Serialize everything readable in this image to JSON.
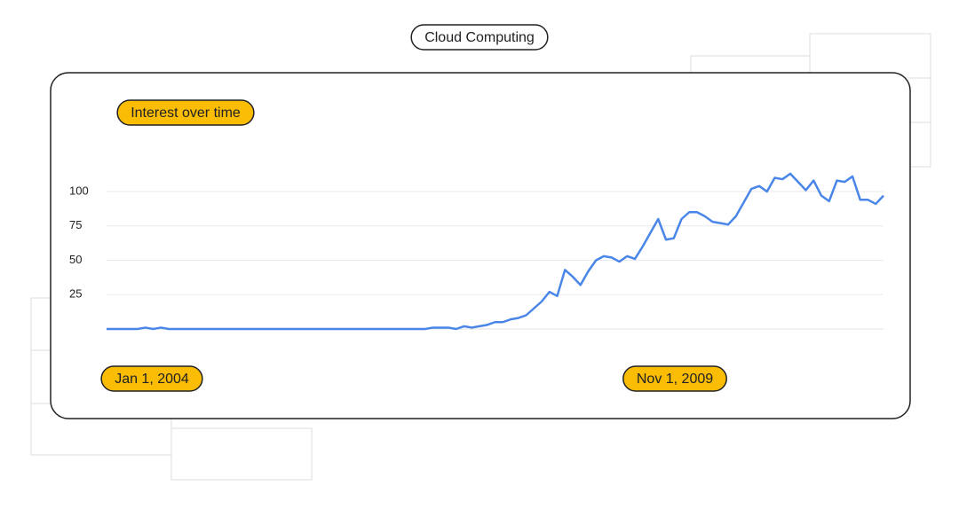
{
  "chart_data": {
    "type": "line",
    "title": "Cloud Computing",
    "annotations": [
      "Interest over time",
      "Jan 1, 2004",
      "Nov 1, 2009"
    ],
    "series": [
      {
        "color": "#4a86e8",
        "values": [
          0,
          0,
          0,
          0,
          0,
          1,
          0,
          1,
          0,
          0,
          0,
          0,
          0,
          0,
          0,
          0,
          0,
          0,
          0,
          0,
          0,
          0,
          0,
          0,
          0,
          0,
          0,
          0,
          0,
          0,
          0,
          0,
          0,
          0,
          0,
          0,
          0,
          0,
          0,
          0,
          0,
          0,
          1,
          1,
          1,
          0,
          2,
          1,
          2,
          3,
          5,
          5,
          7,
          8,
          10,
          15,
          20,
          27,
          24,
          43,
          38,
          32,
          42,
          50,
          53,
          52,
          49,
          53,
          51,
          60,
          70,
          80,
          65,
          66,
          80,
          85,
          85,
          82,
          78,
          77,
          76,
          82,
          92,
          102,
          104,
          100,
          110,
          109,
          113,
          107,
          101,
          108,
          97,
          93,
          108,
          107,
          111,
          94,
          94,
          91,
          97
        ]
      }
    ],
    "ylim": [
      0,
      115
    ],
    "yticks": [
      25,
      50,
      75,
      100
    ],
    "grid": true
  }
}
